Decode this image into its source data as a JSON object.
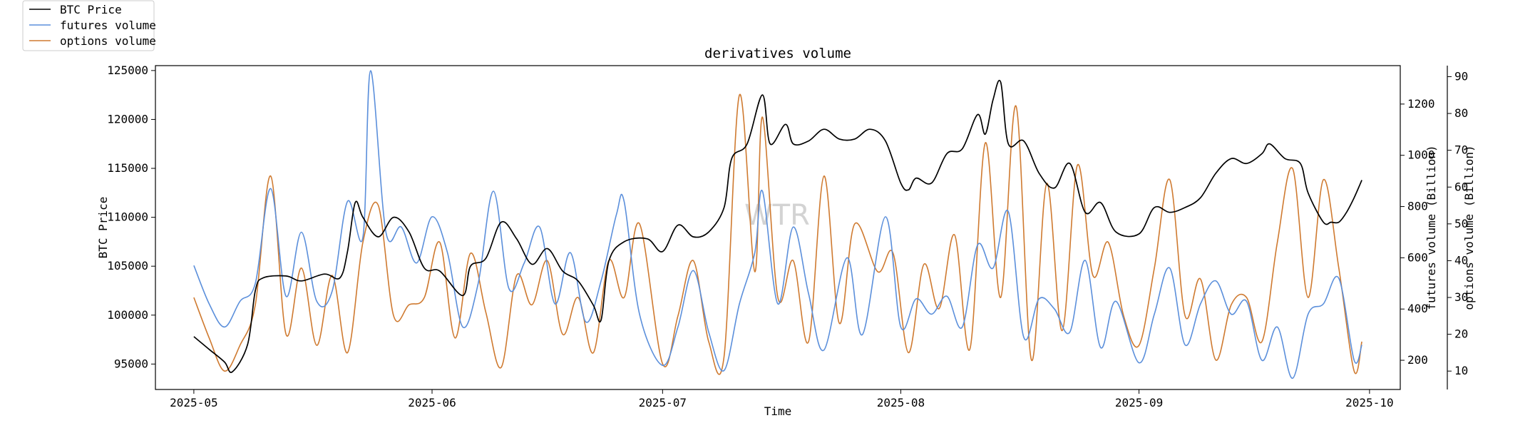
{
  "chart_data": {
    "type": "line",
    "title": "derivatives volume",
    "xlabel": "Time",
    "watermark": "WTR",
    "x_ticks": [
      "2025-05",
      "2025-06",
      "2025-07",
      "2025-08",
      "2025-09",
      "2025-10"
    ],
    "x_range": [
      "2025-04-26",
      "2025-10-05"
    ],
    "legend": {
      "placement": "top-left-outside"
    },
    "axes": {
      "left": {
        "label": "BTC Price",
        "range": [
          92400,
          125500
        ],
        "ticks": [
          95000,
          100000,
          105000,
          110000,
          115000,
          120000,
          125000
        ],
        "tick_labels": [
          "95000",
          "100000",
          "105000",
          "110000",
          "115000",
          "120000",
          "125000"
        ]
      },
      "right1": {
        "label": "futures volume (Billion)",
        "range": [
          86,
          1350
        ],
        "ticks": [
          200,
          400,
          600,
          800,
          1000,
          1200
        ],
        "tick_labels": [
          "200",
          "400",
          "600",
          "800",
          "1000",
          "1200"
        ]
      },
      "right2": {
        "label": "options volume (Billion)",
        "range": [
          5,
          93
        ],
        "ticks": [
          10,
          20,
          30,
          40,
          50,
          60,
          70,
          80,
          90
        ],
        "tick_labels": [
          "10",
          "20",
          "30",
          "40",
          "50",
          "60",
          "70",
          "80",
          "90"
        ]
      }
    },
    "series": [
      {
        "name": "BTC Price",
        "axis": "left",
        "color": "#000000",
        "points": [
          [
            "2025-05-01",
            97800
          ],
          [
            "2025-05-03",
            96500
          ],
          [
            "2025-05-05",
            95200
          ],
          [
            "2025-05-06",
            94200
          ],
          [
            "2025-05-08",
            97000
          ],
          [
            "2025-05-09",
            102500
          ],
          [
            "2025-05-10",
            103800
          ],
          [
            "2025-05-13",
            104000
          ],
          [
            "2025-05-15",
            103500
          ],
          [
            "2025-05-18",
            104200
          ],
          [
            "2025-05-20",
            103800
          ],
          [
            "2025-05-21",
            106500
          ],
          [
            "2025-05-22",
            111500
          ],
          [
            "2025-05-23",
            110000
          ],
          [
            "2025-05-25",
            108000
          ],
          [
            "2025-05-27",
            110000
          ],
          [
            "2025-05-29",
            108500
          ],
          [
            "2025-05-31",
            104800
          ],
          [
            "2025-06-02",
            104500
          ],
          [
            "2025-06-05",
            102000
          ],
          [
            "2025-06-06",
            105000
          ],
          [
            "2025-06-08",
            105800
          ],
          [
            "2025-06-10",
            109500
          ],
          [
            "2025-06-12",
            107800
          ],
          [
            "2025-06-14",
            105200
          ],
          [
            "2025-06-16",
            106800
          ],
          [
            "2025-06-18",
            104500
          ],
          [
            "2025-06-20",
            103500
          ],
          [
            "2025-06-22",
            101000
          ],
          [
            "2025-06-23",
            99500
          ],
          [
            "2025-06-24",
            105500
          ],
          [
            "2025-06-26",
            107500
          ],
          [
            "2025-06-29",
            107800
          ],
          [
            "2025-07-01",
            106500
          ],
          [
            "2025-07-03",
            109200
          ],
          [
            "2025-07-05",
            108000
          ],
          [
            "2025-07-07",
            108500
          ],
          [
            "2025-07-09",
            111000
          ],
          [
            "2025-07-10",
            116000
          ],
          [
            "2025-07-12",
            117500
          ],
          [
            "2025-07-14",
            122500
          ],
          [
            "2025-07-15",
            117500
          ],
          [
            "2025-07-17",
            119500
          ],
          [
            "2025-07-18",
            117500
          ],
          [
            "2025-07-20",
            117800
          ],
          [
            "2025-07-22",
            119000
          ],
          [
            "2025-07-24",
            118000
          ],
          [
            "2025-07-26",
            118000
          ],
          [
            "2025-07-28",
            119000
          ],
          [
            "2025-07-30",
            117800
          ],
          [
            "2025-08-01",
            113500
          ],
          [
            "2025-08-02",
            112800
          ],
          [
            "2025-08-03",
            114000
          ],
          [
            "2025-08-05",
            113500
          ],
          [
            "2025-08-07",
            116500
          ],
          [
            "2025-08-09",
            117000
          ],
          [
            "2025-08-11",
            120500
          ],
          [
            "2025-08-12",
            118500
          ],
          [
            "2025-08-13",
            122000
          ],
          [
            "2025-08-14",
            123800
          ],
          [
            "2025-08-15",
            117500
          ],
          [
            "2025-08-17",
            117800
          ],
          [
            "2025-08-19",
            114500
          ],
          [
            "2025-08-21",
            113000
          ],
          [
            "2025-08-23",
            115500
          ],
          [
            "2025-08-25",
            110500
          ],
          [
            "2025-08-27",
            111500
          ],
          [
            "2025-08-29",
            108500
          ],
          [
            "2025-09-01",
            108300
          ],
          [
            "2025-09-03",
            111000
          ],
          [
            "2025-09-05",
            110500
          ],
          [
            "2025-09-07",
            111000
          ],
          [
            "2025-09-09",
            112000
          ],
          [
            "2025-09-11",
            114500
          ],
          [
            "2025-09-13",
            116000
          ],
          [
            "2025-09-15",
            115500
          ],
          [
            "2025-09-17",
            116500
          ],
          [
            "2025-09-18",
            117500
          ],
          [
            "2025-09-20",
            116000
          ],
          [
            "2025-09-22",
            115500
          ],
          [
            "2025-09-23",
            112500
          ],
          [
            "2025-09-25",
            109500
          ],
          [
            "2025-09-26",
            109500
          ],
          [
            "2025-09-27",
            109500
          ],
          [
            "2025-09-28",
            110500
          ],
          [
            "2025-09-29",
            112000
          ],
          [
            "2025-09-30",
            113800
          ]
        ]
      },
      {
        "name": "futures volume",
        "axis": "right1",
        "color": "#5b8fdb",
        "points": [
          [
            "2025-05-01",
            570
          ],
          [
            "2025-05-03",
            420
          ],
          [
            "2025-05-05",
            330
          ],
          [
            "2025-05-07",
            430
          ],
          [
            "2025-05-09",
            500
          ],
          [
            "2025-05-11",
            870
          ],
          [
            "2025-05-13",
            450
          ],
          [
            "2025-05-15",
            700
          ],
          [
            "2025-05-17",
            430
          ],
          [
            "2025-05-19",
            470
          ],
          [
            "2025-05-21",
            820
          ],
          [
            "2025-05-23",
            680
          ],
          [
            "2025-05-24",
            1330
          ],
          [
            "2025-05-26",
            700
          ],
          [
            "2025-05-28",
            720
          ],
          [
            "2025-05-30",
            580
          ],
          [
            "2025-06-01",
            760
          ],
          [
            "2025-06-03",
            620
          ],
          [
            "2025-06-05",
            330
          ],
          [
            "2025-06-07",
            500
          ],
          [
            "2025-06-09",
            860
          ],
          [
            "2025-06-11",
            480
          ],
          [
            "2025-06-13",
            580
          ],
          [
            "2025-06-15",
            720
          ],
          [
            "2025-06-17",
            420
          ],
          [
            "2025-06-19",
            620
          ],
          [
            "2025-06-21",
            350
          ],
          [
            "2025-06-23",
            510
          ],
          [
            "2025-06-25",
            770
          ],
          [
            "2025-06-26",
            820
          ],
          [
            "2025-06-28",
            380
          ],
          [
            "2025-07-01",
            180
          ],
          [
            "2025-07-03",
            330
          ],
          [
            "2025-07-05",
            550
          ],
          [
            "2025-07-07",
            310
          ],
          [
            "2025-07-09",
            160
          ],
          [
            "2025-07-11",
            420
          ],
          [
            "2025-07-13",
            620
          ],
          [
            "2025-07-14",
            860
          ],
          [
            "2025-07-16",
            420
          ],
          [
            "2025-07-18",
            720
          ],
          [
            "2025-07-20",
            460
          ],
          [
            "2025-07-22",
            240
          ],
          [
            "2025-07-25",
            600
          ],
          [
            "2025-07-27",
            300
          ],
          [
            "2025-07-30",
            760
          ],
          [
            "2025-08-01",
            330
          ],
          [
            "2025-08-03",
            440
          ],
          [
            "2025-08-05",
            380
          ],
          [
            "2025-08-07",
            450
          ],
          [
            "2025-08-09",
            330
          ],
          [
            "2025-08-11",
            650
          ],
          [
            "2025-08-13",
            560
          ],
          [
            "2025-08-15",
            780
          ],
          [
            "2025-08-17",
            290
          ],
          [
            "2025-08-19",
            440
          ],
          [
            "2025-08-21",
            400
          ],
          [
            "2025-08-23",
            310
          ],
          [
            "2025-08-25",
            590
          ],
          [
            "2025-08-27",
            250
          ],
          [
            "2025-08-29",
            430
          ],
          [
            "2025-09-01",
            190
          ],
          [
            "2025-09-03",
            380
          ],
          [
            "2025-09-05",
            560
          ],
          [
            "2025-09-07",
            260
          ],
          [
            "2025-09-09",
            420
          ],
          [
            "2025-09-11",
            510
          ],
          [
            "2025-09-13",
            380
          ],
          [
            "2025-09-15",
            430
          ],
          [
            "2025-09-17",
            200
          ],
          [
            "2025-09-19",
            330
          ],
          [
            "2025-09-21",
            130
          ],
          [
            "2025-09-23",
            380
          ],
          [
            "2025-09-25",
            420
          ],
          [
            "2025-09-27",
            520
          ],
          [
            "2025-09-29",
            200
          ],
          [
            "2025-09-30",
            260
          ]
        ]
      },
      {
        "name": "options volume",
        "axis": "right2",
        "color": "#cf7a30",
        "points": [
          [
            "2025-05-01",
            30
          ],
          [
            "2025-05-03",
            19
          ],
          [
            "2025-05-05",
            10
          ],
          [
            "2025-05-07",
            17
          ],
          [
            "2025-05-09",
            28
          ],
          [
            "2025-05-11",
            63
          ],
          [
            "2025-05-13",
            20
          ],
          [
            "2025-05-15",
            38
          ],
          [
            "2025-05-17",
            17
          ],
          [
            "2025-05-19",
            36
          ],
          [
            "2025-05-21",
            15
          ],
          [
            "2025-05-23",
            45
          ],
          [
            "2025-05-25",
            55
          ],
          [
            "2025-05-27",
            25
          ],
          [
            "2025-05-29",
            28
          ],
          [
            "2025-05-31",
            30
          ],
          [
            "2025-06-02",
            45
          ],
          [
            "2025-06-04",
            19
          ],
          [
            "2025-06-06",
            42
          ],
          [
            "2025-06-08",
            26
          ],
          [
            "2025-06-10",
            11
          ],
          [
            "2025-06-12",
            36
          ],
          [
            "2025-06-14",
            28
          ],
          [
            "2025-06-16",
            40
          ],
          [
            "2025-06-18",
            20
          ],
          [
            "2025-06-20",
            30
          ],
          [
            "2025-06-22",
            15
          ],
          [
            "2025-06-24",
            40
          ],
          [
            "2025-06-26",
            30
          ],
          [
            "2025-06-28",
            50
          ],
          [
            "2025-07-01",
            12
          ],
          [
            "2025-07-03",
            25
          ],
          [
            "2025-07-05",
            40
          ],
          [
            "2025-07-07",
            18
          ],
          [
            "2025-07-09",
            14
          ],
          [
            "2025-07-11",
            85
          ],
          [
            "2025-07-13",
            37
          ],
          [
            "2025-07-14",
            79
          ],
          [
            "2025-07-16",
            30
          ],
          [
            "2025-07-18",
            40
          ],
          [
            "2025-07-20",
            18
          ],
          [
            "2025-07-22",
            63
          ],
          [
            "2025-07-24",
            23
          ],
          [
            "2025-07-26",
            50
          ],
          [
            "2025-07-29",
            37
          ],
          [
            "2025-07-31",
            42
          ],
          [
            "2025-08-02",
            15
          ],
          [
            "2025-08-04",
            39
          ],
          [
            "2025-08-06",
            27
          ],
          [
            "2025-08-08",
            47
          ],
          [
            "2025-08-10",
            16
          ],
          [
            "2025-08-12",
            72
          ],
          [
            "2025-08-14",
            30
          ],
          [
            "2025-08-16",
            82
          ],
          [
            "2025-08-18",
            13
          ],
          [
            "2025-08-20",
            61
          ],
          [
            "2025-08-22",
            21
          ],
          [
            "2025-08-24",
            66
          ],
          [
            "2025-08-26",
            36
          ],
          [
            "2025-08-28",
            45
          ],
          [
            "2025-08-30",
            25
          ],
          [
            "2025-09-01",
            17
          ],
          [
            "2025-09-03",
            38
          ],
          [
            "2025-09-05",
            62
          ],
          [
            "2025-09-07",
            25
          ],
          [
            "2025-09-09",
            35
          ],
          [
            "2025-09-11",
            13
          ],
          [
            "2025-09-13",
            28
          ],
          [
            "2025-09-15",
            30
          ],
          [
            "2025-09-17",
            18
          ],
          [
            "2025-09-19",
            45
          ],
          [
            "2025-09-21",
            65
          ],
          [
            "2025-09-23",
            30
          ],
          [
            "2025-09-25",
            62
          ],
          [
            "2025-09-27",
            38
          ],
          [
            "2025-09-29",
            10
          ],
          [
            "2025-09-30",
            18
          ]
        ]
      }
    ]
  }
}
